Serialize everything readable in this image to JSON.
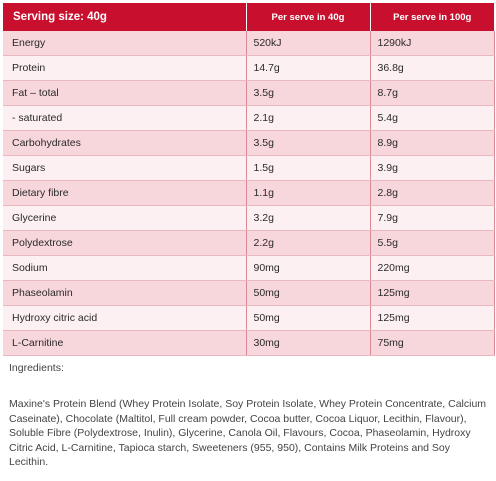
{
  "table": {
    "headers": [
      "Serving size: 40g",
      "Per serve in 40g",
      "Per serve in 100g"
    ],
    "rows": [
      [
        "Energy",
        "520kJ",
        "1290kJ"
      ],
      [
        "Protein",
        "14.7g",
        "36.8g"
      ],
      [
        "Fat – total",
        "3.5g",
        "8.7g"
      ],
      [
        " - saturated",
        "2.1g",
        "5.4g"
      ],
      [
        "Carbohydrates",
        "3.5g",
        "8.9g"
      ],
      [
        "Sugars",
        "1.5g",
        "3.9g"
      ],
      [
        "Dietary fibre",
        "1.1g",
        "2.8g"
      ],
      [
        "Glycerine",
        "3.2g",
        "7.9g"
      ],
      [
        "Polydextrose",
        "2.2g",
        "5.5g"
      ],
      [
        "Sodium",
        "90mg",
        "220mg"
      ],
      [
        "Phaseolamin",
        "50mg",
        "125mg"
      ],
      [
        "Hydroxy citric acid",
        "50mg",
        "125mg"
      ],
      [
        "L-Carnitine",
        "30mg",
        "75mg"
      ]
    ]
  },
  "ingredients": {
    "heading": "Ingredients:",
    "text": "Maxine's Protein Blend (Whey Protein Isolate, Soy Protein Isolate, Whey Protein Concentrate, Calcium Caseinate), Chocolate (Maltitol, Full cream powder, Cocoa butter, Cocoa Liquor, Lecithin, Flavour), Soluble Fibre (Polydextrose, Inulin), Glycerine, Canola Oil, Flavours, Cocoa, Phaseolamin, Hydroxy Citric Acid, L-Carnitine, Tapioca starch, Sweeteners (955, 950), Contains Milk Proteins and Soy Lecithin."
  },
  "colors": {
    "header_bg": "#c8102e",
    "row_odd": "#f7d6dc",
    "row_even": "#fdf0f2"
  }
}
